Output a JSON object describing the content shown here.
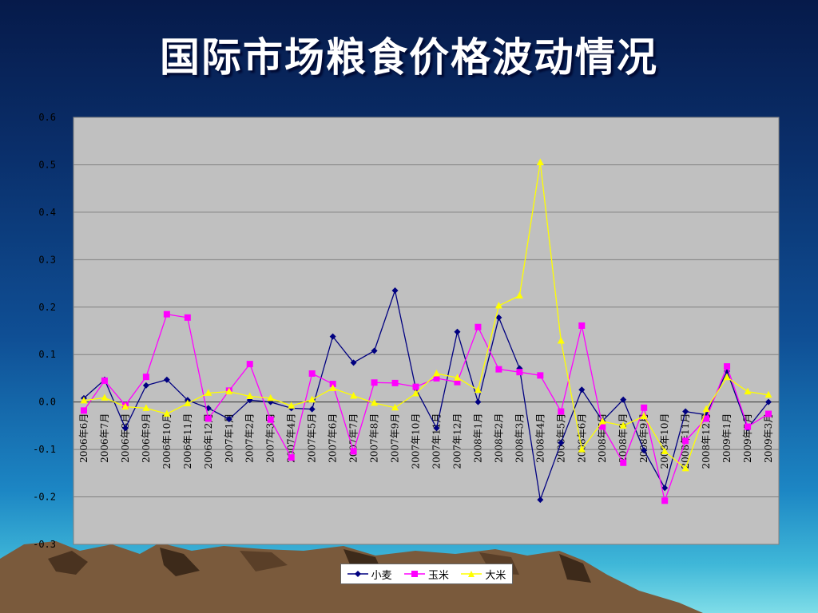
{
  "slide": {
    "title": "国际市场粮食价格波动情况"
  },
  "chart_data": {
    "type": "line",
    "title": "",
    "xlabel": "",
    "ylabel": "",
    "ylim": [
      -0.3,
      0.6
    ],
    "yticks": [
      "0.6",
      "0.5",
      "0.4",
      "0.3",
      "0.2",
      "0.1",
      "0.0",
      "-0.1",
      "-0.2",
      "-0.3"
    ],
    "grid": true,
    "legend_position": "bottom",
    "categories": [
      "2006年6月",
      "2006年7月",
      "2006年8月",
      "2006年9月",
      "2006年10月",
      "2006年11月",
      "2006年12月",
      "2007年1月",
      "2007年2月",
      "2007年3月",
      "2007年4月",
      "2007年5月",
      "2007年6月",
      "2007年7月",
      "2007年8月",
      "2007年9月",
      "2007年10月",
      "2007年11月",
      "2007年12月",
      "2008年1月",
      "2008年2月",
      "2008年3月",
      "2008年4月",
      "2008年5月",
      "2008年6月",
      "2008年7月",
      "2008年8月",
      "2008年9月",
      "2008年10月",
      "2008年11月",
      "2008年12月",
      "2009年1月",
      "2009年2月",
      "2009年3月"
    ],
    "series": [
      {
        "name": "小麦",
        "color": "#000080",
        "marker": "diamond",
        "values": [
          0.008,
          0.047,
          -0.055,
          0.035,
          0.047,
          0.004,
          -0.013,
          -0.036,
          0.004,
          0.0,
          -0.013,
          -0.015,
          0.138,
          0.083,
          0.108,
          0.235,
          0.028,
          -0.055,
          0.148,
          0.0,
          0.178,
          0.071,
          -0.206,
          -0.086,
          0.026,
          -0.04,
          0.005,
          -0.102,
          -0.181,
          -0.02,
          -0.027,
          0.065,
          -0.055,
          0.0
        ]
      },
      {
        "name": "玉米",
        "color": "#ff00ff",
        "marker": "square",
        "values": [
          -0.018,
          0.045,
          -0.007,
          0.053,
          0.185,
          0.178,
          -0.035,
          0.024,
          0.08,
          -0.037,
          -0.117,
          0.06,
          0.038,
          -0.104,
          0.041,
          0.04,
          0.032,
          0.05,
          0.042,
          0.158,
          0.069,
          0.063,
          0.056,
          -0.02,
          0.161,
          -0.052,
          -0.128,
          -0.012,
          -0.208,
          -0.082,
          -0.035,
          0.075,
          -0.052,
          -0.025
        ]
      },
      {
        "name": "大米",
        "color": "#ffff00",
        "marker": "triangle",
        "values": [
          0.003,
          0.009,
          -0.01,
          -0.013,
          -0.025,
          -0.003,
          0.019,
          0.022,
          0.012,
          0.008,
          -0.008,
          0.005,
          0.029,
          0.013,
          -0.002,
          -0.012,
          0.018,
          0.06,
          0.051,
          0.025,
          0.203,
          0.224,
          0.505,
          0.129,
          -0.1,
          -0.041,
          -0.05,
          -0.03,
          -0.104,
          -0.14,
          -0.015,
          0.052,
          0.022,
          0.015
        ]
      }
    ]
  }
}
